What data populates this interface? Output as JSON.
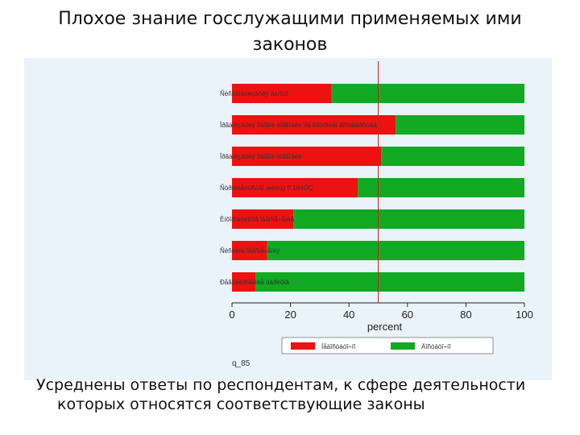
{
  "title": {
    "line1": "Плохое знание госслужащими применяемых ими",
    "line2": "законов"
  },
  "caption": {
    "line1": "Усреднены ответы по респондентам, к сфере деятельности",
    "line2": "которых относятся соответствующие законы"
  },
  "colors": {
    "red": "#ee1111",
    "green": "#11aa22",
    "reference": "#cc2222",
    "panel": "#eaf2fa"
  },
  "chart_data": {
    "type": "bar",
    "orientation": "horizontal",
    "stacked": true,
    "categories": [
      "Ñèñòåìàòèçàöèÿ äàííûõ",
      "Îðãàíèçàöèÿ îïòîâîé òîðãîâëè ïîä êîíòðîëåì ãîñóäàðñòâà",
      "Îðãàíèçàöèÿ îïòîâîé òîðãîâëè",
      "Ñòðîèòåëüñòâî æèëüÿ ïî 184ÔÇ",
      "Èíôîðìàöèîííîå îáåñïå÷åíèå",
      "Ñèñòåìà îáåñïå÷åíèÿ",
      "Ðåãóëèðîâàíèå òàðèôîâ"
    ],
    "series": [
      {
        "name": "Íåäîñòàòî÷íî",
        "color": "#ee1111",
        "values": [
          34,
          56,
          51,
          43,
          21,
          12,
          8
        ]
      },
      {
        "name": "Äîñòàòî÷íî",
        "color": "#11aa22",
        "values": [
          66,
          44,
          49,
          57,
          79,
          88,
          92
        ]
      }
    ],
    "xlabel": "percent",
    "xticks": [
      0,
      20,
      40,
      60,
      80,
      100
    ],
    "xlim": [
      0,
      100
    ],
    "reference_line": 50,
    "footnote": "q_85",
    "legend_position": "bottom"
  }
}
